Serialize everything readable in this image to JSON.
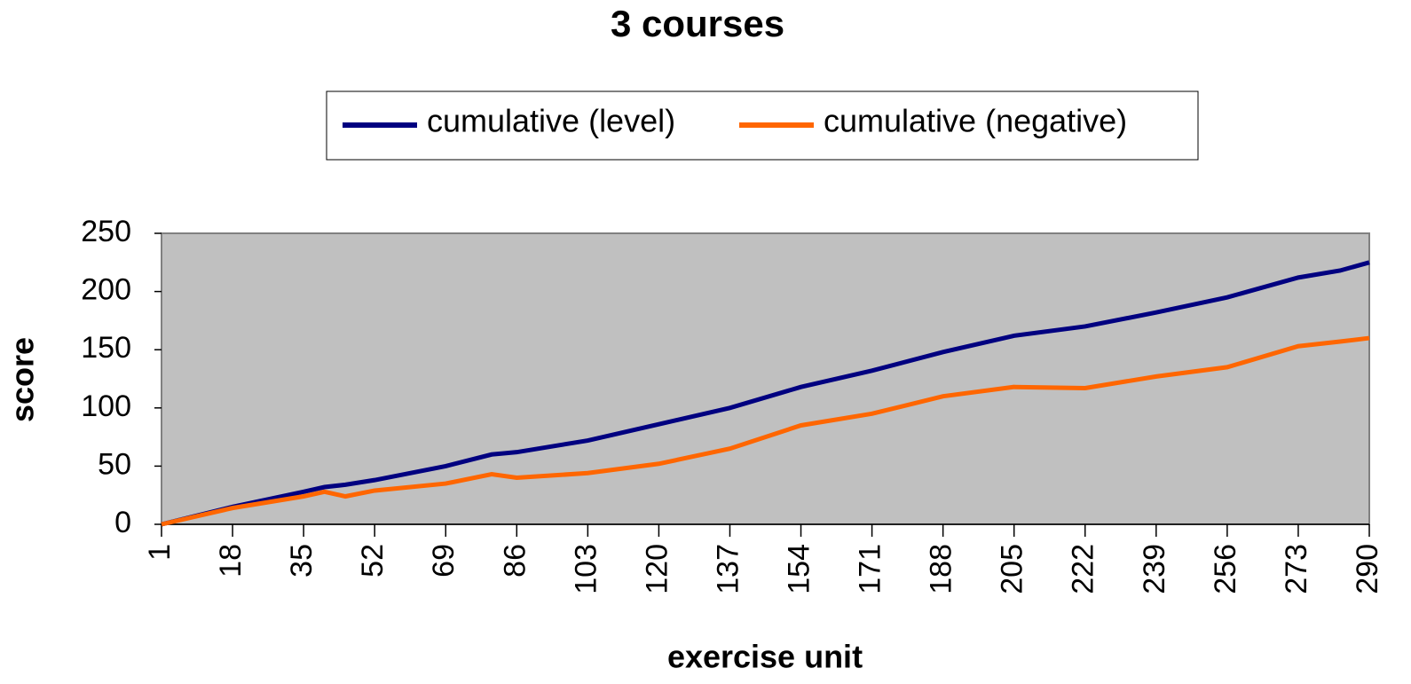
{
  "chart_data": {
    "type": "line",
    "title": "3 courses",
    "x_label": "exercise unit",
    "y_label": "score",
    "x": [
      1,
      18,
      35,
      40,
      45,
      52,
      69,
      80,
      86,
      103,
      120,
      137,
      154,
      171,
      188,
      205,
      222,
      239,
      256,
      273,
      283,
      290
    ],
    "series": [
      {
        "name": "cumulative (level)",
        "color": "#000080",
        "values": [
          0,
          15,
          28,
          32,
          34,
          38,
          50,
          60,
          62,
          72,
          86,
          100,
          118,
          132,
          148,
          162,
          170,
          182,
          195,
          212,
          218,
          225
        ]
      },
      {
        "name": "cumulative (negative)",
        "color": "#ff6600",
        "values": [
          0,
          14,
          24,
          28,
          24,
          29,
          35,
          43,
          40,
          44,
          52,
          65,
          85,
          95,
          110,
          118,
          117,
          127,
          135,
          153,
          157,
          160
        ]
      }
    ],
    "xlim": [
      1,
      290
    ],
    "xticks": [
      1,
      18,
      35,
      52,
      69,
      86,
      103,
      120,
      137,
      154,
      171,
      188,
      205,
      222,
      239,
      256,
      273,
      290
    ],
    "ylim": [
      0,
      250
    ],
    "yticks": [
      0,
      50,
      100,
      150,
      200,
      250
    ],
    "legend": "top",
    "plot_background": "#c0c0c0"
  }
}
